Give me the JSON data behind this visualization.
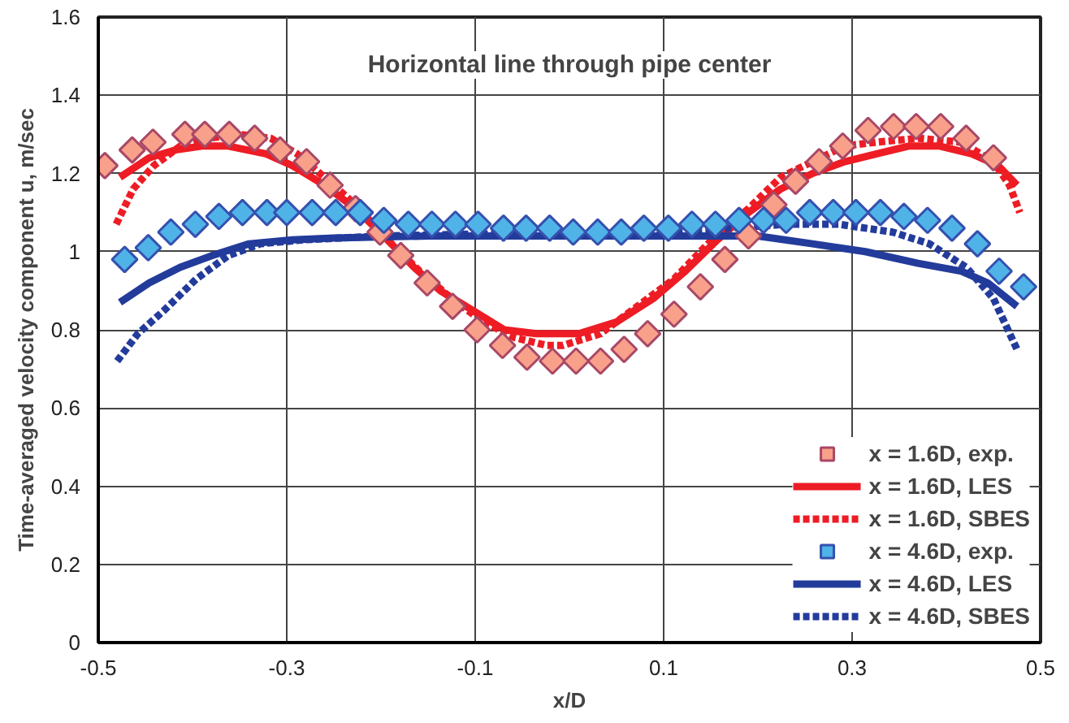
{
  "chart_data": {
    "type": "scatter",
    "title": "Horizontal line through pipe center",
    "xlabel": "x/D",
    "ylabel": "Time-averaged velocity component u, m/sec",
    "xlim": [
      -0.5,
      0.5
    ],
    "ylim": [
      0,
      1.6
    ],
    "xticks": [
      -0.5,
      -0.3,
      -0.1,
      0.1,
      0.3,
      0.5
    ],
    "yticks": [
      0,
      0.2,
      0.4,
      0.6,
      0.8,
      1,
      1.2,
      1.4,
      1.6
    ],
    "grid": true,
    "legend": "bottom right",
    "series": [
      {
        "name": "x = 1.6D, exp.",
        "marker": "diamond",
        "color": "#f9a08a",
        "x": [
          -0.493,
          -0.464,
          -0.442,
          -0.408,
          -0.387,
          -0.361,
          -0.334,
          -0.307,
          -0.279,
          -0.254,
          -0.227,
          -0.201,
          -0.179,
          -0.151,
          -0.124,
          -0.098,
          -0.071,
          -0.045,
          -0.018,
          0.007,
          0.033,
          0.058,
          0.083,
          0.111,
          0.139,
          0.165,
          0.19,
          0.217,
          0.24,
          0.265,
          0.29,
          0.317,
          0.344,
          0.368,
          0.394,
          0.421,
          0.45
        ],
        "values": [
          1.22,
          1.26,
          1.28,
          1.3,
          1.3,
          1.3,
          1.29,
          1.26,
          1.23,
          1.17,
          1.11,
          1.05,
          0.99,
          0.92,
          0.86,
          0.8,
          0.76,
          0.73,
          0.72,
          0.72,
          0.72,
          0.75,
          0.79,
          0.84,
          0.91,
          0.98,
          1.04,
          1.12,
          1.18,
          1.23,
          1.27,
          1.31,
          1.32,
          1.32,
          1.32,
          1.29,
          1.24
        ]
      },
      {
        "name": "x = 1.6D, LES",
        "type": "line",
        "line_style": "solid",
        "color": "#ee1c24",
        "x": [
          -0.477,
          -0.446,
          -0.418,
          -0.39,
          -0.362,
          -0.322,
          -0.294,
          -0.26,
          -0.227,
          -0.193,
          -0.165,
          -0.137,
          -0.103,
          -0.069,
          -0.035,
          -0.007,
          0.01,
          0.05,
          0.089,
          0.123,
          0.157,
          0.19,
          0.224,
          0.258,
          0.292,
          0.326,
          0.36,
          0.393,
          0.427,
          0.455,
          0.475
        ],
        "values": [
          1.19,
          1.24,
          1.26,
          1.27,
          1.27,
          1.25,
          1.22,
          1.17,
          1.11,
          1.03,
          0.96,
          0.9,
          0.85,
          0.8,
          0.79,
          0.79,
          0.79,
          0.82,
          0.88,
          0.95,
          1.03,
          1.1,
          1.16,
          1.2,
          1.23,
          1.25,
          1.27,
          1.27,
          1.25,
          1.22,
          1.17
        ]
      },
      {
        "name": "x = 1.6D, SBES",
        "type": "line",
        "line_style": "dotted",
        "color": "#ee1c24",
        "x": [
          -0.481,
          -0.463,
          -0.441,
          -0.413,
          -0.384,
          -0.35,
          -0.317,
          -0.289,
          -0.26,
          -0.227,
          -0.193,
          -0.159,
          -0.125,
          -0.091,
          -0.058,
          -0.024,
          -0.007,
          0.033,
          0.072,
          0.111,
          0.151,
          0.19,
          0.224,
          0.258,
          0.292,
          0.326,
          0.37,
          0.416,
          0.45,
          0.467,
          0.478
        ],
        "values": [
          1.07,
          1.16,
          1.22,
          1.27,
          1.29,
          1.3,
          1.29,
          1.25,
          1.19,
          1.12,
          1.03,
          0.95,
          0.88,
          0.82,
          0.78,
          0.76,
          0.76,
          0.79,
          0.86,
          0.93,
          1.03,
          1.11,
          1.19,
          1.23,
          1.27,
          1.28,
          1.29,
          1.28,
          1.23,
          1.17,
          1.1
        ]
      },
      {
        "name": "x = 4.6D, exp.",
        "marker": "diamond",
        "color": "#4fb3e8",
        "x": [
          -0.472,
          -0.447,
          -0.423,
          -0.397,
          -0.372,
          -0.347,
          -0.321,
          -0.3,
          -0.273,
          -0.248,
          -0.222,
          -0.197,
          -0.171,
          -0.146,
          -0.121,
          -0.097,
          -0.07,
          -0.046,
          -0.021,
          0.004,
          0.03,
          0.055,
          0.079,
          0.105,
          0.13,
          0.155,
          0.18,
          0.206,
          0.23,
          0.255,
          0.28,
          0.304,
          0.33,
          0.355,
          0.38,
          0.406,
          0.433,
          0.456,
          0.482
        ],
        "values": [
          0.98,
          1.01,
          1.05,
          1.07,
          1.09,
          1.1,
          1.1,
          1.1,
          1.1,
          1.1,
          1.1,
          1.08,
          1.07,
          1.07,
          1.07,
          1.07,
          1.06,
          1.06,
          1.06,
          1.05,
          1.05,
          1.05,
          1.06,
          1.06,
          1.07,
          1.07,
          1.08,
          1.08,
          1.08,
          1.1,
          1.1,
          1.1,
          1.1,
          1.09,
          1.08,
          1.06,
          1.02,
          0.95,
          0.91
        ]
      },
      {
        "name": "x = 4.6D, LES",
        "type": "line",
        "line_style": "solid",
        "color": "#233b9b",
        "x": [
          -0.477,
          -0.446,
          -0.413,
          -0.379,
          -0.34,
          -0.294,
          -0.25,
          -0.15,
          -0.05,
          0.05,
          0.15,
          0.2,
          0.258,
          0.314,
          0.37,
          0.416,
          0.444,
          0.475
        ],
        "values": [
          0.87,
          0.92,
          0.96,
          0.99,
          1.02,
          1.03,
          1.035,
          1.04,
          1.04,
          1.04,
          1.04,
          1.04,
          1.02,
          1.0,
          0.97,
          0.95,
          0.92,
          0.86
        ]
      },
      {
        "name": "x = 4.6D, SBES",
        "type": "line",
        "line_style": "dotted",
        "color": "#233b9b",
        "x": [
          -0.48,
          -0.458,
          -0.43,
          -0.396,
          -0.362,
          -0.328,
          -0.283,
          -0.2,
          -0.1,
          0.0,
          0.1,
          0.17,
          0.23,
          0.286,
          0.343,
          0.382,
          0.421,
          0.45,
          0.475
        ],
        "values": [
          0.72,
          0.79,
          0.85,
          0.93,
          0.99,
          1.02,
          1.03,
          1.04,
          1.045,
          1.045,
          1.05,
          1.06,
          1.07,
          1.07,
          1.05,
          1.02,
          0.96,
          0.88,
          0.75
        ]
      }
    ]
  }
}
